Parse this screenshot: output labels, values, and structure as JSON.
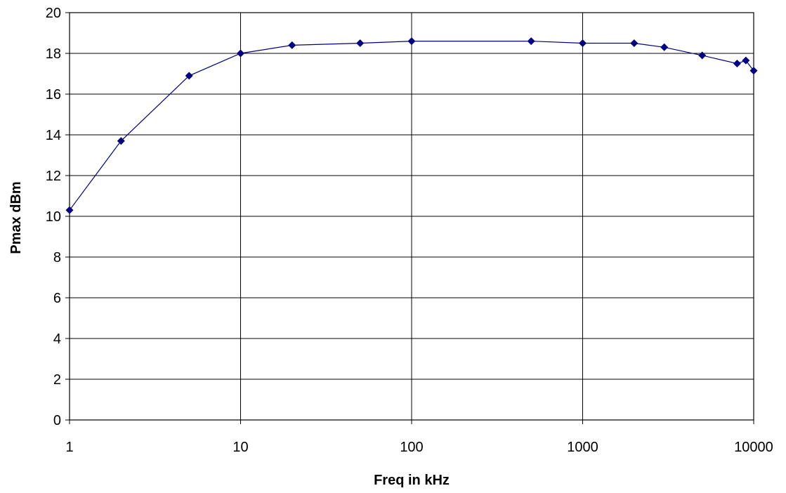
{
  "chart_data": {
    "type": "line",
    "x_scale": "log",
    "xlabel": "Freq in kHz",
    "ylabel": "Pmax dBm",
    "xlim": [
      1,
      10000
    ],
    "ylim": [
      0,
      20
    ],
    "x_ticks": [
      "1",
      "10",
      "100",
      "1000",
      "10000"
    ],
    "y_ticks": [
      "0",
      "2",
      "4",
      "6",
      "8",
      "10",
      "12",
      "14",
      "16",
      "18",
      "20"
    ],
    "grid": true,
    "legend": "none",
    "series": [
      {
        "color": "#000080",
        "marker": "diamond",
        "x": [
          1,
          2,
          5,
          10,
          20,
          50,
          100,
          500,
          1000,
          2000,
          3000,
          5000,
          8000,
          9000,
          10000
        ],
        "y": [
          10.3,
          13.7,
          16.9,
          18.0,
          18.4,
          18.5,
          18.6,
          18.6,
          18.5,
          18.5,
          18.3,
          17.9,
          17.5,
          17.65,
          17.15
        ]
      }
    ]
  }
}
